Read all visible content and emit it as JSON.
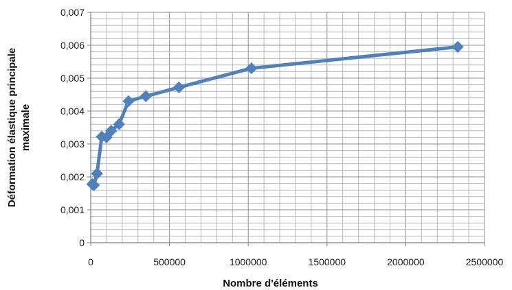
{
  "chart_data": {
    "type": "line",
    "title": "",
    "xlabel": "Nombre d'éléments",
    "ylabel": "Déformation élastique principale maximale",
    "ylabel_lines": [
      "Déformation élastique principale",
      "maximale"
    ],
    "xlim": [
      0,
      2500000
    ],
    "ylim": [
      0,
      0.007
    ],
    "x_ticks": [
      0,
      500000,
      1000000,
      1500000,
      2000000,
      2500000
    ],
    "x_tick_labels": [
      "0",
      "500000",
      "1000000",
      "1500000",
      "2000000",
      "2500000"
    ],
    "y_ticks": [
      0,
      0.001,
      0.002,
      0.003,
      0.004,
      0.005,
      0.006,
      0.007
    ],
    "y_tick_labels": [
      "0",
      "0,001",
      "0,002",
      "0,003",
      "0,004",
      "0,005",
      "0,006",
      "0,007"
    ],
    "grid": true,
    "legend": "none",
    "series": [
      {
        "color": "#4f81bd",
        "marker": "diamond",
        "x": [
          10000,
          20000,
          40000,
          70000,
          100000,
          130000,
          180000,
          240000,
          350000,
          560000,
          1020000,
          2330000
        ],
        "y": [
          0.00178,
          0.00175,
          0.0021,
          0.00322,
          0.0032,
          0.0034,
          0.0036,
          0.0043,
          0.00445,
          0.00472,
          0.0053,
          0.00595
        ]
      }
    ]
  }
}
